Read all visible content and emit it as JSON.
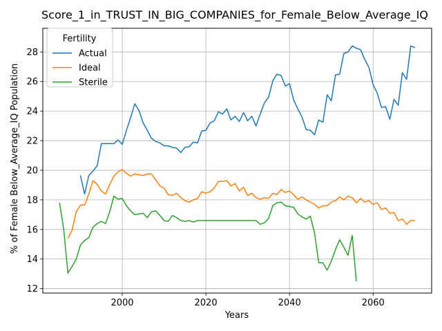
{
  "chart_data": {
    "type": "line",
    "title": "Score_1_in_TRUST_IN_BIG_COMPANIES_for_Female_Below_Average_IQ",
    "xlabel": "Years",
    "ylabel": "% of Female Below_Average_IQ Population",
    "xlim": [
      1981,
      2074
    ],
    "ylim": [
      11.7,
      29.6
    ],
    "xticks": [
      2000,
      2020,
      2040,
      2060
    ],
    "yticks": [
      12,
      14,
      16,
      18,
      20,
      22,
      24,
      26,
      28
    ],
    "grid": true,
    "legend": {
      "title": "Fertility",
      "placement": "top-left"
    },
    "series": [
      {
        "name": "Actual",
        "color": "#1f77b4",
        "x": [
          1990,
          1991,
          1992,
          1993,
          1994,
          1995,
          1996,
          1997,
          1998,
          1999,
          2000,
          2001,
          2002,
          2003,
          2004,
          2005,
          2006,
          2007,
          2008,
          2009,
          2010,
          2011,
          2012,
          2013,
          2014,
          2015,
          2016,
          2017,
          2018,
          2019,
          2020,
          2021,
          2022,
          2023,
          2024,
          2025,
          2026,
          2027,
          2028,
          2029,
          2030,
          2031,
          2032,
          2033,
          2034,
          2035,
          2036,
          2037,
          2038,
          2039,
          2040,
          2041,
          2042,
          2043,
          2044,
          2045,
          2046,
          2047,
          2048,
          2049,
          2050,
          2051,
          2052,
          2053,
          2054,
          2055,
          2056,
          2057,
          2058,
          2059,
          2060,
          2061,
          2062,
          2063,
          2064,
          2065,
          2066,
          2067,
          2068,
          2069,
          2070
        ],
        "values": [
          19.65,
          18.4,
          19.65,
          19.95,
          20.3,
          21.8,
          21.8,
          21.8,
          21.8,
          22.05,
          21.75,
          22.7,
          23.55,
          24.5,
          24.05,
          23.2,
          22.7,
          22.15,
          21.95,
          21.85,
          21.65,
          21.65,
          21.55,
          21.5,
          21.2,
          21.55,
          21.6,
          21.9,
          21.85,
          22.65,
          22.7,
          23.2,
          23.35,
          23.95,
          23.8,
          24.15,
          23.4,
          23.65,
          23.3,
          23.9,
          23.35,
          23.65,
          23.0,
          23.8,
          24.55,
          24.95,
          26.05,
          26.5,
          26.4,
          25.7,
          25.85,
          24.75,
          24.15,
          23.6,
          22.75,
          22.7,
          22.4,
          23.4,
          23.25,
          25.1,
          24.7,
          26.45,
          26.5,
          27.9,
          28.0,
          28.4,
          28.25,
          28.15,
          27.5,
          26.95,
          25.8,
          25.2,
          24.25,
          24.3,
          23.45,
          24.8,
          24.4,
          26.6,
          26.15,
          28.4,
          28.3
        ]
      },
      {
        "name": "Ideal",
        "color": "#ff7f0e",
        "x": [
          1987,
          1988,
          1989,
          1990,
          1991,
          1992,
          1993,
          1994,
          1995,
          1996,
          1997,
          1998,
          1999,
          2000,
          2001,
          2002,
          2003,
          2004,
          2005,
          2006,
          2007,
          2008,
          2009,
          2010,
          2011,
          2012,
          2013,
          2014,
          2015,
          2016,
          2017,
          2018,
          2019,
          2020,
          2021,
          2022,
          2023,
          2024,
          2025,
          2026,
          2027,
          2028,
          2029,
          2030,
          2031,
          2032,
          2033,
          2034,
          2035,
          2036,
          2037,
          2038,
          2039,
          2040,
          2041,
          2042,
          2043,
          2044,
          2045,
          2046,
          2047,
          2048,
          2049,
          2050,
          2051,
          2052,
          2053,
          2054,
          2055,
          2056,
          2057,
          2058,
          2059,
          2060,
          2061,
          2062,
          2063,
          2064,
          2065,
          2066,
          2067,
          2068,
          2069,
          2070
        ],
        "values": [
          15.4,
          15.95,
          17.2,
          17.65,
          17.65,
          18.4,
          19.3,
          19.05,
          18.6,
          18.4,
          19.05,
          19.6,
          19.9,
          20.05,
          19.8,
          19.6,
          19.75,
          19.7,
          19.65,
          19.75,
          19.75,
          19.35,
          18.95,
          18.8,
          18.35,
          18.3,
          18.45,
          18.15,
          17.95,
          17.85,
          18.0,
          18.1,
          18.55,
          18.45,
          18.55,
          18.8,
          19.25,
          19.25,
          19.3,
          18.95,
          19.1,
          18.6,
          18.85,
          18.3,
          18.45,
          18.15,
          18.05,
          18.15,
          18.1,
          18.45,
          18.35,
          18.7,
          18.5,
          18.6,
          18.35,
          18.05,
          18.2,
          18.0,
          17.85,
          17.7,
          17.45,
          17.6,
          17.6,
          17.85,
          17.95,
          18.2,
          18.0,
          18.25,
          18.15,
          17.8,
          18.1,
          17.85,
          17.95,
          17.7,
          17.8,
          17.35,
          17.45,
          17.1,
          17.15,
          16.6,
          16.7,
          16.35,
          16.6,
          16.6
        ]
      },
      {
        "name": "Sterile",
        "color": "#2ca02c",
        "x": [
          1985,
          1986,
          1987,
          1988,
          1989,
          1990,
          1991,
          1992,
          1993,
          1994,
          1995,
          1996,
          1997,
          1998,
          1999,
          2000,
          2001,
          2002,
          2003,
          2004,
          2005,
          2006,
          2007,
          2008,
          2009,
          2010,
          2011,
          2012,
          2013,
          2014,
          2015,
          2016,
          2017,
          2018,
          2019,
          2020,
          2021,
          2022,
          2023,
          2024,
          2025,
          2026,
          2027,
          2028,
          2029,
          2030,
          2031,
          2032,
          2033,
          2034,
          2035,
          2036,
          2037,
          2038,
          2039,
          2040,
          2041,
          2042,
          2043,
          2044,
          2045,
          2046,
          2047,
          2048,
          2049,
          2050,
          2051,
          2052,
          2053,
          2054,
          2055,
          2056
        ],
        "values": [
          17.8,
          16.0,
          13.05,
          13.5,
          14.0,
          14.95,
          15.25,
          15.45,
          16.15,
          16.4,
          16.55,
          16.4,
          17.2,
          18.25,
          18.05,
          18.1,
          17.6,
          17.25,
          17.0,
          17.05,
          17.1,
          16.8,
          17.2,
          17.25,
          16.95,
          16.6,
          16.55,
          16.95,
          16.8,
          16.6,
          16.55,
          16.6,
          16.5,
          16.6,
          16.6,
          16.6,
          16.6,
          16.6,
          16.6,
          16.6,
          16.6,
          16.6,
          16.6,
          16.6,
          16.6,
          16.6,
          16.6,
          16.6,
          16.35,
          16.45,
          16.75,
          17.6,
          17.8,
          17.85,
          17.6,
          17.55,
          17.5,
          17.05,
          16.85,
          16.7,
          16.9,
          15.75,
          13.75,
          13.75,
          13.25,
          13.85,
          14.65,
          15.3,
          14.8,
          14.25,
          15.6,
          12.5
        ]
      }
    ]
  }
}
